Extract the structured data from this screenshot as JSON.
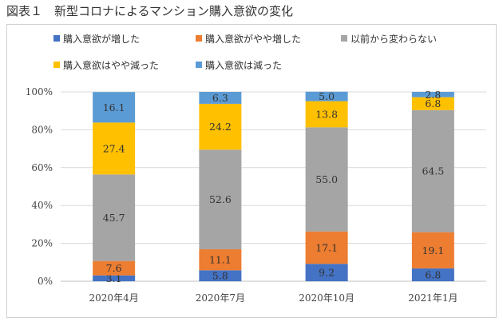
{
  "figure": {
    "title": "図表１　新型コロナによるマンション購入意欲の変化"
  },
  "chart_data": {
    "type": "bar",
    "stacked": true,
    "categories": [
      "2020年4月",
      "2020年7月",
      "2020年10月",
      "2021年1月"
    ],
    "series": [
      {
        "name": "購入意欲が増した",
        "color": "#4472C4",
        "values": [
          3.1,
          5.8,
          9.2,
          6.8
        ]
      },
      {
        "name": "購入意欲がやや増した",
        "color": "#ED7D31",
        "values": [
          7.6,
          11.1,
          17.1,
          19.1
        ]
      },
      {
        "name": "以前から変わらない",
        "color": "#A5A5A5",
        "values": [
          45.7,
          52.6,
          55.0,
          64.5
        ]
      },
      {
        "name": "購入意欲はやや減った",
        "color": "#FFC000",
        "values": [
          27.4,
          24.2,
          13.8,
          6.8
        ]
      },
      {
        "name": "購入意欲は減った",
        "color": "#5B9BD5",
        "values": [
          16.1,
          6.3,
          5.0,
          2.8
        ]
      }
    ],
    "value_labels": [
      [
        "3.1",
        "5.8",
        "9.2",
        "6.8"
      ],
      [
        "7.6",
        "11.1",
        "17.1",
        "19.1"
      ],
      [
        "45.7",
        "52.6",
        "55.0",
        "64.5"
      ],
      [
        "27.4",
        "24.2",
        "13.8",
        "6.8"
      ],
      [
        "16.1",
        "6.3",
        "5.0",
        "2.8"
      ]
    ],
    "ylim": [
      0,
      100
    ],
    "yticks": [
      "0%",
      "20%",
      "40%",
      "60%",
      "80%",
      "100%"
    ],
    "grid": true,
    "legend_position": "top"
  }
}
